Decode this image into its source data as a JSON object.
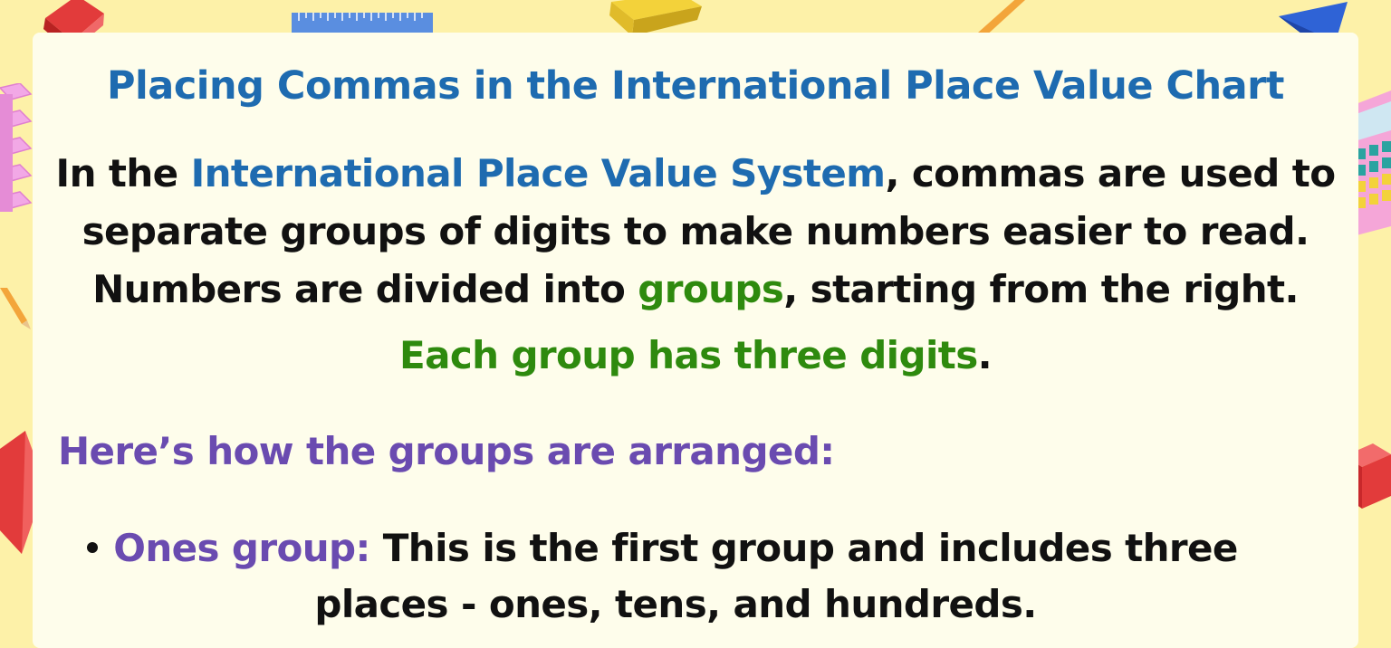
{
  "title": "Placing Commas in the International Place Value Chart",
  "intro": {
    "line1_pre": "In the ",
    "line1_highlight": "International Place Value System",
    "line1_post": ", commas are used to",
    "line2": "separate groups of digits to make numbers easier to read.",
    "line3_pre": "Numbers are divided into ",
    "line3_highlight": "groups",
    "line3_post": ", starting from the right."
  },
  "rule": {
    "highlight": "Each group has three digits",
    "post": "."
  },
  "subheading": "Here’s how the groups are arranged:",
  "bullets": [
    {
      "label": "Ones group:",
      "line1": " This is the first group and includes three",
      "line2": "places - ones, tens, and hundreds."
    }
  ],
  "colors": {
    "background": "#fdf1a8",
    "card": "#fefdeb",
    "title_blue": "#1e6bb0",
    "green": "#2e8a0e",
    "purple": "#6a4bb0",
    "text": "#111111"
  },
  "decorations": [
    "red-cube-icon",
    "ruler-icon",
    "yellow-block-icon",
    "pencil-icon",
    "blue-cone-icon",
    "pink-cubes-icon",
    "calculator-icon",
    "red-prism-icon",
    "red-cube-icon"
  ]
}
